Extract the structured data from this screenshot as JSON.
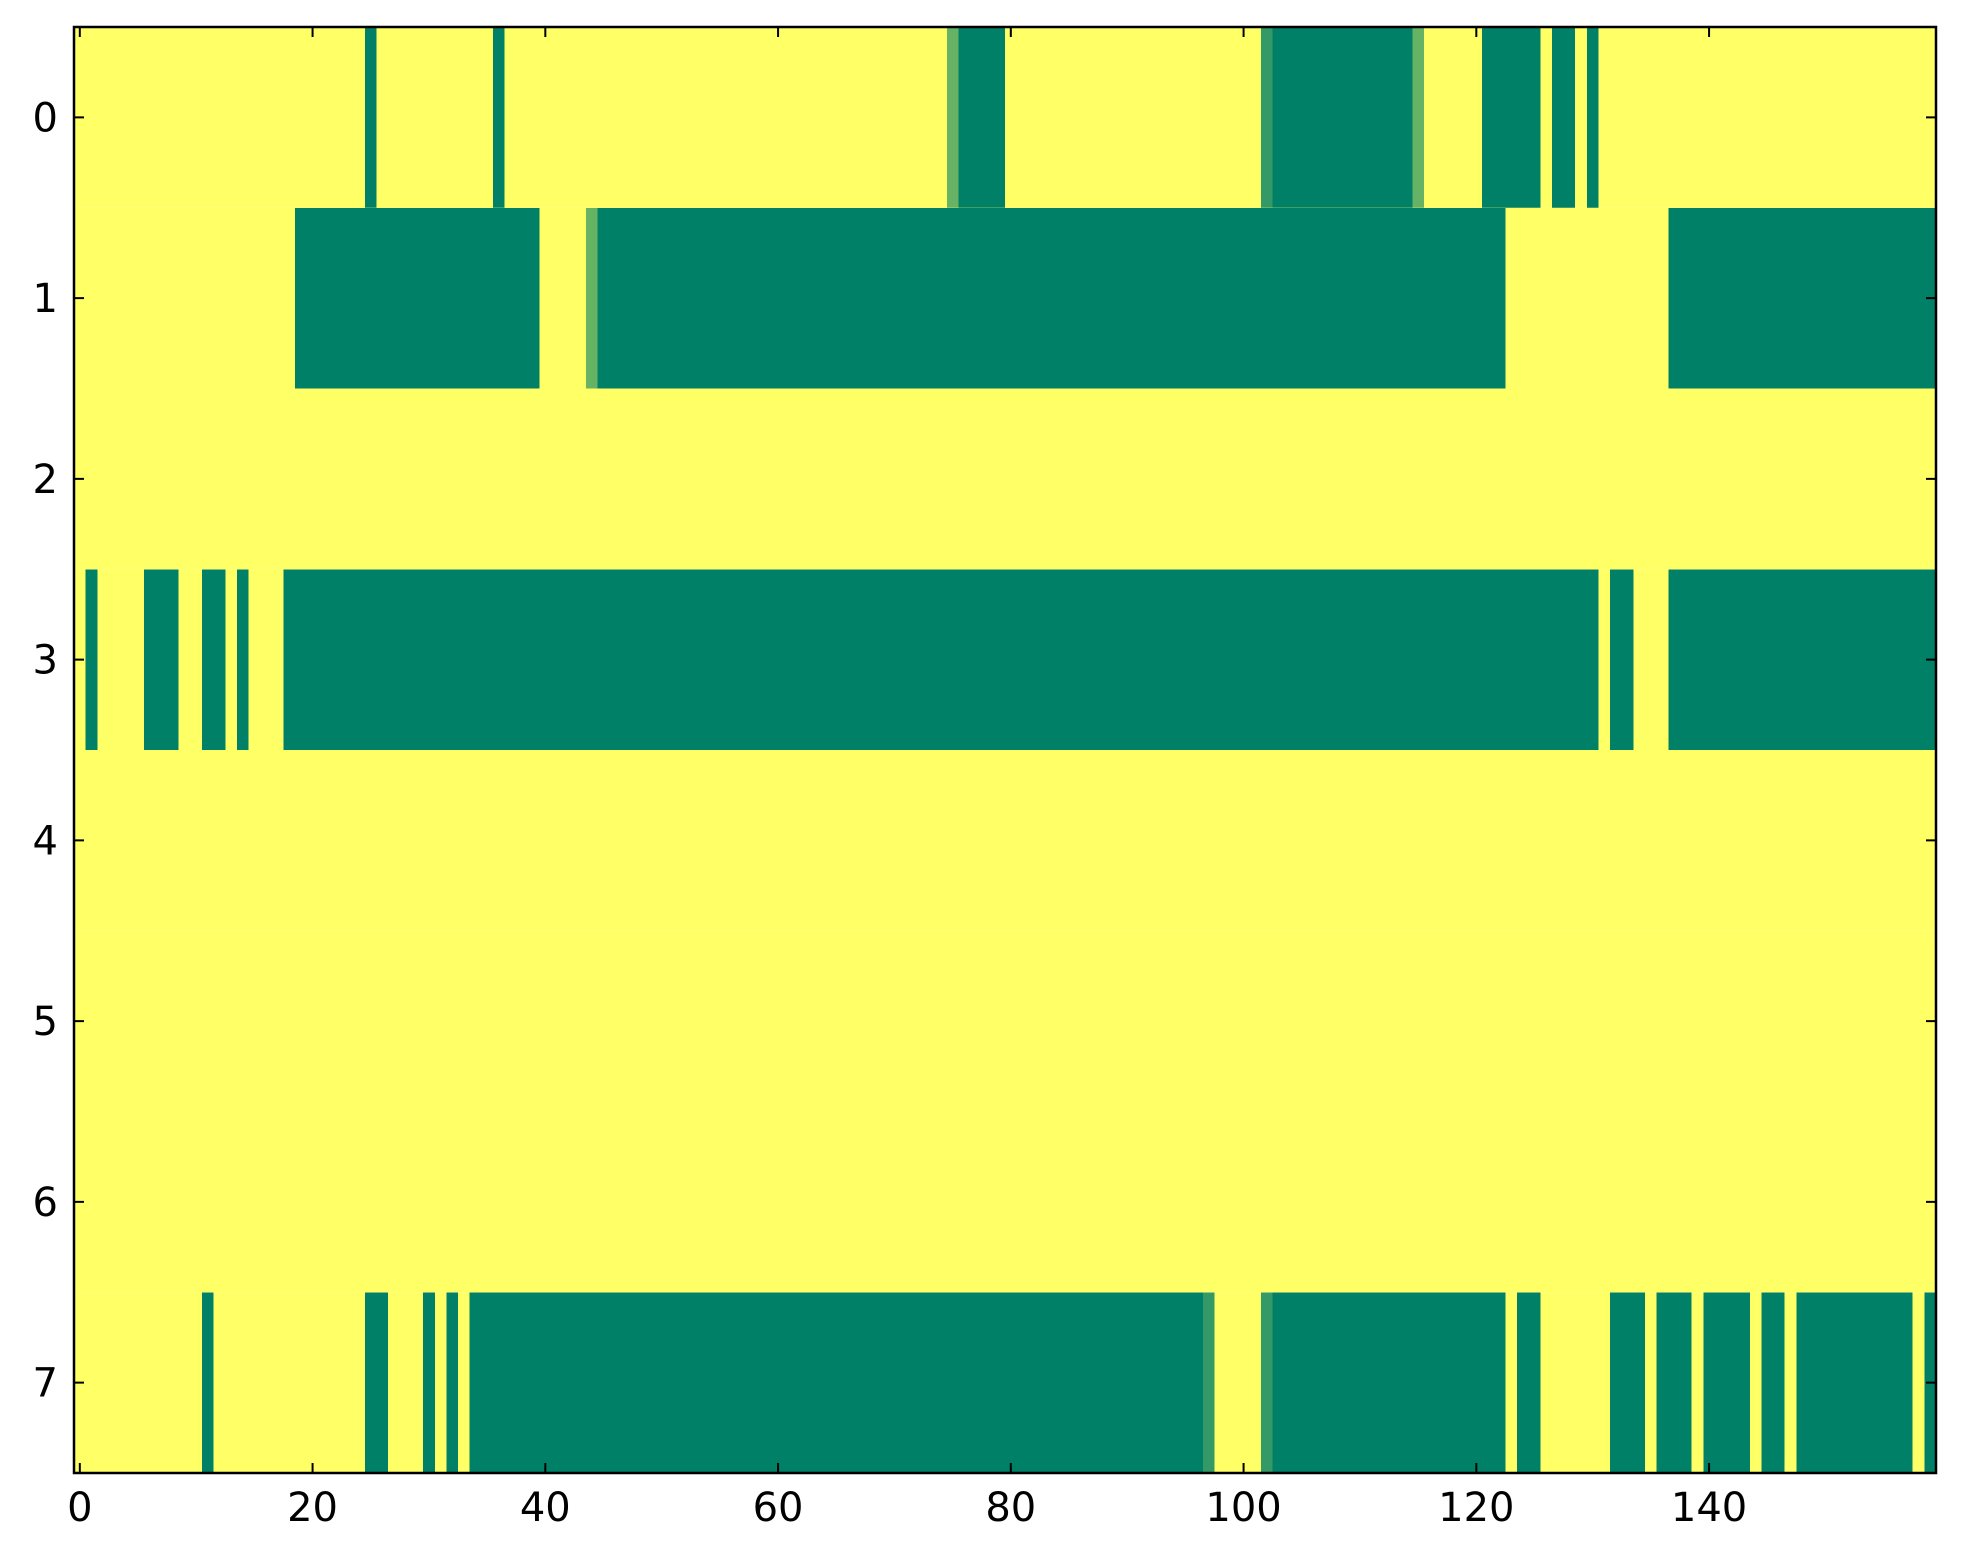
{
  "chart_data": {
    "type": "heatmap",
    "title": "",
    "xlabel": "",
    "ylabel": "",
    "xlim": [
      -0.5,
      159.5
    ],
    "ylim": [
      -0.5,
      7.5
    ],
    "y_inverted": true,
    "x_ticks": [
      0,
      20,
      40,
      60,
      80,
      100,
      120,
      140
    ],
    "x_tick_labels": [
      "0",
      "20",
      "40",
      "60",
      "80",
      "100",
      "120",
      "140"
    ],
    "y_ticks": [
      0,
      1,
      2,
      3,
      4,
      5,
      6,
      7
    ],
    "y_tick_labels": [
      "0",
      "1",
      "2",
      "3",
      "4",
      "5",
      "6",
      "7"
    ],
    "grid": false,
    "colormap": "summer",
    "colors": {
      "low": "#008066",
      "high": "#ffff66",
      "intermediate_light": "#66b266",
      "intermediate_dark": "#339966"
    },
    "default_value": 1,
    "rows": [
      {
        "row": 0,
        "segments": [
          {
            "start": 25,
            "end": 25,
            "value": 0
          },
          {
            "start": 36,
            "end": 36,
            "value": 0
          },
          {
            "start": 75,
            "end": 75,
            "value": 0.4
          },
          {
            "start": 76,
            "end": 79,
            "value": 0
          },
          {
            "start": 102,
            "end": 102,
            "value": 0.2
          },
          {
            "start": 103,
            "end": 114,
            "value": 0
          },
          {
            "start": 115,
            "end": 115,
            "value": 0.4
          },
          {
            "start": 121,
            "end": 125,
            "value": 0
          },
          {
            "start": 127,
            "end": 128,
            "value": 0
          },
          {
            "start": 130,
            "end": 130,
            "value": 0
          }
        ]
      },
      {
        "row": 1,
        "segments": [
          {
            "start": 19,
            "end": 39,
            "value": 0
          },
          {
            "start": 44,
            "end": 44,
            "value": 0.4
          },
          {
            "start": 45,
            "end": 122,
            "value": 0
          },
          {
            "start": 137,
            "end": 159,
            "value": 0
          }
        ]
      },
      {
        "row": 2,
        "segments": []
      },
      {
        "row": 3,
        "segments": [
          {
            "start": 1,
            "end": 1,
            "value": 0
          },
          {
            "start": 6,
            "end": 8,
            "value": 0
          },
          {
            "start": 11,
            "end": 12,
            "value": 0
          },
          {
            "start": 14,
            "end": 14,
            "value": 0
          },
          {
            "start": 18,
            "end": 130,
            "value": 0
          },
          {
            "start": 132,
            "end": 133,
            "value": 0
          },
          {
            "start": 137,
            "end": 159,
            "value": 0
          }
        ]
      },
      {
        "row": 4,
        "segments": []
      },
      {
        "row": 5,
        "segments": []
      },
      {
        "row": 6,
        "segments": []
      },
      {
        "row": 7,
        "segments": [
          {
            "start": 11,
            "end": 11,
            "value": 0
          },
          {
            "start": 25,
            "end": 26,
            "value": 0
          },
          {
            "start": 30,
            "end": 30,
            "value": 0
          },
          {
            "start": 32,
            "end": 32,
            "value": 0
          },
          {
            "start": 34,
            "end": 96,
            "value": 0
          },
          {
            "start": 97,
            "end": 97,
            "value": 0.2
          },
          {
            "start": 102,
            "end": 102,
            "value": 0.2
          },
          {
            "start": 103,
            "end": 122,
            "value": 0
          },
          {
            "start": 124,
            "end": 125,
            "value": 0
          },
          {
            "start": 132,
            "end": 134,
            "value": 0
          },
          {
            "start": 136,
            "end": 138,
            "value": 0
          },
          {
            "start": 140,
            "end": 143,
            "value": 0
          },
          {
            "start": 145,
            "end": 146,
            "value": 0
          },
          {
            "start": 148,
            "end": 157,
            "value": 0
          },
          {
            "start": 159,
            "end": 159,
            "value": 0
          }
        ]
      }
    ]
  }
}
